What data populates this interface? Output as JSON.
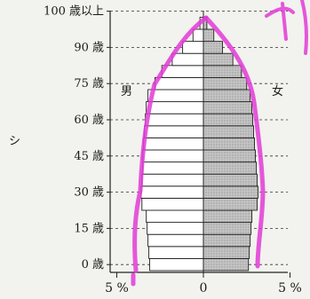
{
  "chart_data": {
    "type": "population-pyramid",
    "title": "",
    "age_labels": [
      "0 歳",
      "15 歳",
      "30 歳",
      "45 歳",
      "60 歳",
      "75 歳",
      "90 歳",
      "100 歳以上"
    ],
    "age_groups": [
      "0-4",
      "5-9",
      "10-14",
      "15-19",
      "20-24",
      "25-29",
      "30-34",
      "35-39",
      "40-44",
      "45-49",
      "50-54",
      "55-59",
      "60-64",
      "65-69",
      "70-74",
      "75-79",
      "80-84",
      "85-89",
      "90-94",
      "95-99",
      "100+"
    ],
    "series": [
      {
        "name": "男",
        "values": [
          3.1,
          3.15,
          3.2,
          3.25,
          3.3,
          3.55,
          3.6,
          3.55,
          3.5,
          3.5,
          3.45,
          3.4,
          3.35,
          3.3,
          3.2,
          2.8,
          2.4,
          1.8,
          1.2,
          0.6,
          0.2
        ]
      },
      {
        "name": "女",
        "values": [
          2.6,
          2.65,
          2.7,
          2.75,
          2.8,
          3.1,
          3.15,
          3.1,
          3.05,
          3.0,
          2.95,
          2.9,
          2.85,
          2.8,
          2.7,
          2.5,
          2.2,
          1.7,
          1.1,
          0.6,
          0.2
        ]
      }
    ],
    "x_tick_labels": [
      "5 %",
      "0",
      "5 %"
    ],
    "xlim": [
      -5,
      5
    ],
    "grid": "dashed horizontal at age-label rows",
    "colors": {
      "male": "#ffffff",
      "female": "#b8b8b8",
      "highlight": "#e23bd6"
    }
  },
  "side_marks": {
    "left_char": "シ"
  }
}
